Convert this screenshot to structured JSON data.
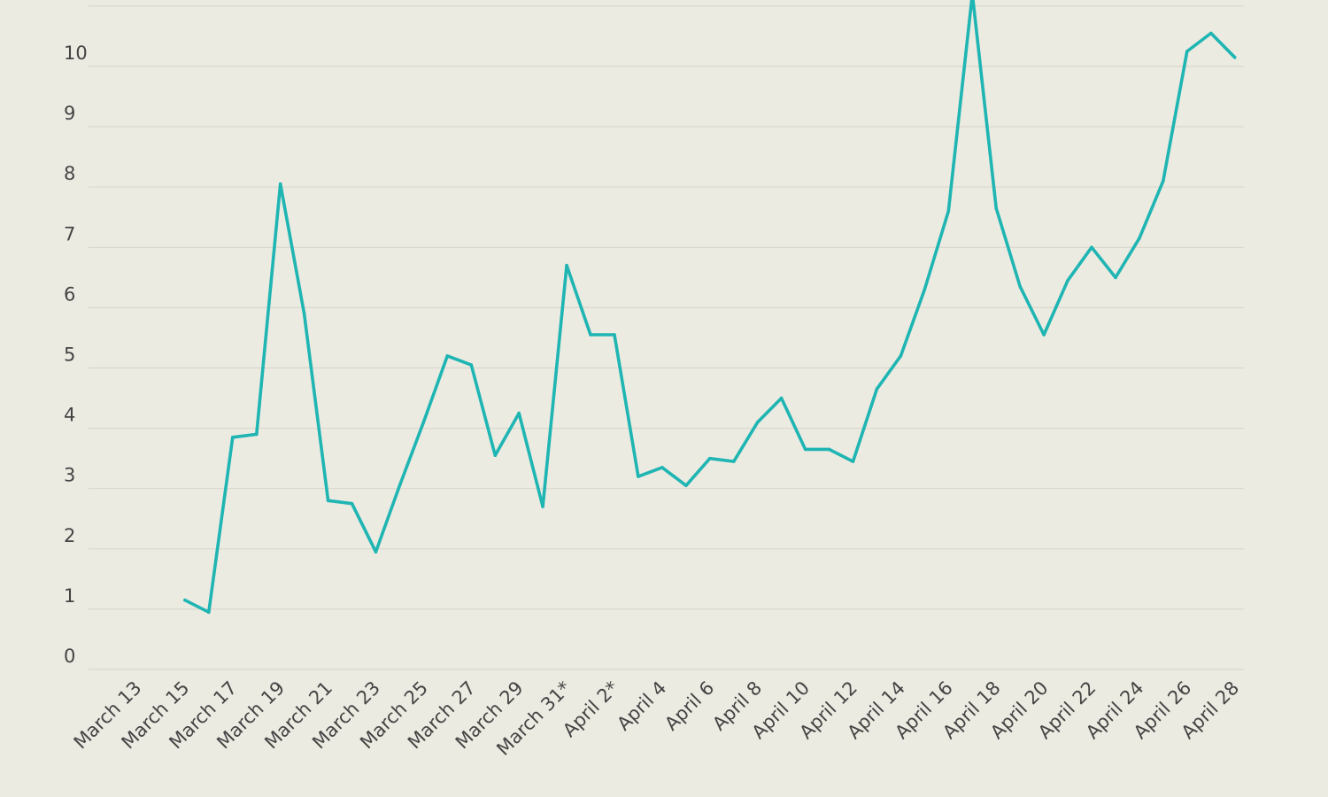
{
  "chart_data": {
    "type": "line",
    "title": "",
    "xlabel": "",
    "ylabel": "",
    "grid": true,
    "legend": "none",
    "ylim": [
      0,
      11
    ],
    "y_ticks": [
      0,
      1,
      2,
      3,
      4,
      5,
      6,
      7,
      8,
      9,
      10
    ],
    "x_tick_labels": [
      "March 13",
      "March 15",
      "March 17",
      "March 19",
      "March 21",
      "March 23",
      "March 25",
      "March 27",
      "March 29",
      "March 31*",
      "April 2*",
      "April 4",
      "April 6",
      "April 8",
      "April 10",
      "April 12",
      "April 14",
      "April 16",
      "April 18",
      "April 20",
      "April 22",
      "April 24",
      "April 26",
      "April 28"
    ],
    "x": [
      "March 13",
      "March 14",
      "March 15",
      "March 16",
      "March 17",
      "March 18",
      "March 19",
      "March 20",
      "March 21",
      "March 22",
      "March 23",
      "March 24",
      "March 25",
      "March 26",
      "March 27",
      "March 28",
      "March 29",
      "March 30",
      "March 31",
      "April 1",
      "April 2",
      "April 3",
      "April 4",
      "April 5",
      "April 6",
      "April 7",
      "April 8",
      "April 9",
      "April 10",
      "April 11",
      "April 12",
      "April 13",
      "April 14",
      "April 15",
      "April 16",
      "April 17",
      "April 18",
      "April 19",
      "April 20",
      "April 21",
      "April 22",
      "April 23",
      "April 24",
      "April 25",
      "April 26",
      "April 27",
      "April 28"
    ],
    "series": [
      {
        "color": "#1fb5b3",
        "values": [
          null,
          null,
          1.15,
          0.95,
          3.85,
          3.9,
          8.05,
          5.9,
          2.8,
          2.75,
          1.95,
          3.05,
          4.1,
          5.2,
          5.05,
          3.55,
          4.25,
          2.7,
          6.7,
          5.55,
          5.55,
          3.2,
          3.35,
          3.05,
          3.5,
          3.45,
          4.1,
          4.5,
          3.65,
          3.65,
          3.45,
          4.65,
          5.2,
          6.3,
          7.6,
          11.2,
          7.65,
          6.35,
          5.55,
          6.45,
          7.0,
          6.5,
          7.15,
          8.1,
          10.25,
          10.55,
          10.15
        ]
      }
    ]
  }
}
